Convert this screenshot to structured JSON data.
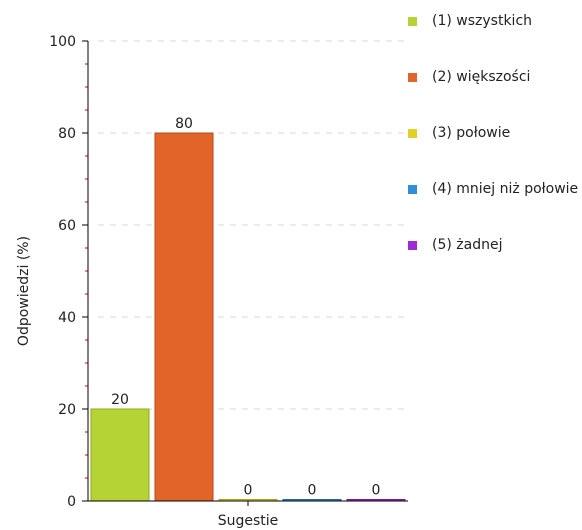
{
  "chart_data": {
    "type": "bar",
    "title": "",
    "xlabel": "Sugestie",
    "ylabel": "Odpowiedzi (%)",
    "ylim": [
      0,
      100
    ],
    "yticks": [
      "0",
      "20",
      "40",
      "60",
      "80",
      "100"
    ],
    "grid": true,
    "legend_position": "right",
    "series": [
      {
        "name": "(1) wszystkich",
        "value": 20,
        "label": "20",
        "color": "#b5d334",
        "stroke": "#8fa822"
      },
      {
        "name": "(2) większości",
        "value": 80,
        "label": "80",
        "color": "#e36428",
        "stroke": "#b44a18"
      },
      {
        "name": "(3) połowie",
        "value": 0,
        "label": "0",
        "color": "#e3cf2a",
        "stroke": "#b3a215"
      },
      {
        "name": "(4) mniej niż połowie",
        "value": 0,
        "label": "0",
        "color": "#2f8fd8",
        "stroke": "#1f6aa6"
      },
      {
        "name": "(5) żadnej",
        "value": 0,
        "label": "0",
        "color": "#a12ad8",
        "stroke": "#7a1aa8"
      }
    ]
  }
}
